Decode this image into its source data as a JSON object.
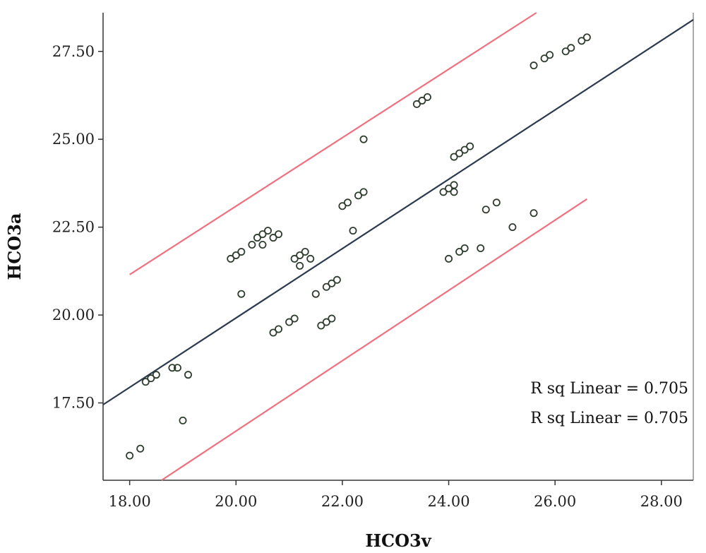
{
  "chart_data": {
    "type": "scatter",
    "xlabel": "HCO3v",
    "ylabel": "HCO3a",
    "xlim": [
      17.5,
      28.6
    ],
    "ylim": [
      15.3,
      28.6
    ],
    "x_ticks": [
      "18.00",
      "20.00",
      "22.00",
      "24.00",
      "26.00",
      "28.00"
    ],
    "y_ticks": [
      "17.50",
      "20.00",
      "22.50",
      "25.00",
      "27.50"
    ],
    "grid": false,
    "points": [
      [
        18.0,
        16.0
      ],
      [
        18.2,
        16.2
      ],
      [
        19.0,
        17.0
      ],
      [
        18.3,
        18.1
      ],
      [
        18.4,
        18.2
      ],
      [
        18.5,
        18.3
      ],
      [
        18.8,
        18.5
      ],
      [
        18.9,
        18.5
      ],
      [
        19.1,
        18.3
      ],
      [
        19.9,
        21.6
      ],
      [
        20.0,
        21.7
      ],
      [
        20.1,
        21.8
      ],
      [
        20.1,
        20.6
      ],
      [
        20.3,
        22.0
      ],
      [
        20.4,
        22.2
      ],
      [
        20.5,
        22.3
      ],
      [
        20.5,
        22.0
      ],
      [
        20.6,
        22.4
      ],
      [
        20.7,
        22.2
      ],
      [
        20.8,
        22.3
      ],
      [
        20.7,
        19.5
      ],
      [
        20.8,
        19.6
      ],
      [
        21.0,
        19.8
      ],
      [
        21.1,
        19.9
      ],
      [
        21.1,
        21.6
      ],
      [
        21.2,
        21.7
      ],
      [
        21.3,
        21.8
      ],
      [
        21.2,
        21.4
      ],
      [
        21.4,
        21.6
      ],
      [
        21.5,
        20.6
      ],
      [
        21.6,
        19.7
      ],
      [
        21.7,
        19.8
      ],
      [
        21.8,
        19.9
      ],
      [
        21.7,
        20.8
      ],
      [
        21.8,
        20.9
      ],
      [
        21.9,
        21.0
      ],
      [
        22.0,
        23.1
      ],
      [
        22.1,
        23.2
      ],
      [
        22.2,
        22.4
      ],
      [
        22.3,
        23.4
      ],
      [
        22.4,
        23.5
      ],
      [
        22.4,
        25.0
      ],
      [
        23.4,
        26.0
      ],
      [
        23.5,
        26.1
      ],
      [
        23.6,
        26.2
      ],
      [
        23.9,
        23.5
      ],
      [
        24.0,
        23.6
      ],
      [
        24.1,
        23.7
      ],
      [
        24.1,
        23.5
      ],
      [
        24.1,
        24.5
      ],
      [
        24.2,
        24.6
      ],
      [
        24.3,
        24.7
      ],
      [
        24.4,
        24.8
      ],
      [
        24.0,
        21.6
      ],
      [
        24.2,
        21.8
      ],
      [
        24.3,
        21.9
      ],
      [
        24.6,
        21.9
      ],
      [
        24.7,
        23.0
      ],
      [
        24.9,
        23.2
      ],
      [
        25.2,
        22.5
      ],
      [
        25.6,
        22.9
      ],
      [
        25.6,
        27.1
      ],
      [
        25.8,
        27.3
      ],
      [
        25.9,
        27.4
      ],
      [
        26.2,
        27.5
      ],
      [
        26.3,
        27.6
      ],
      [
        26.5,
        27.8
      ],
      [
        26.6,
        27.9
      ]
    ],
    "fit_line": {
      "x": [
        17.5,
        28.6
      ],
      "y": [
        17.45,
        28.4
      ],
      "color": "#2b3a4f"
    },
    "upper_limit": {
      "x": [
        18.0,
        25.65
      ],
      "y": [
        21.15,
        28.6
      ],
      "color": "#f0707f"
    },
    "lower_limit": {
      "x": [
        18.6,
        26.6
      ],
      "y": [
        15.3,
        23.3
      ],
      "color": "#f0707f"
    },
    "annotations": [
      "R sq Linear = 0.705",
      "R sq Linear = 0.705"
    ]
  }
}
